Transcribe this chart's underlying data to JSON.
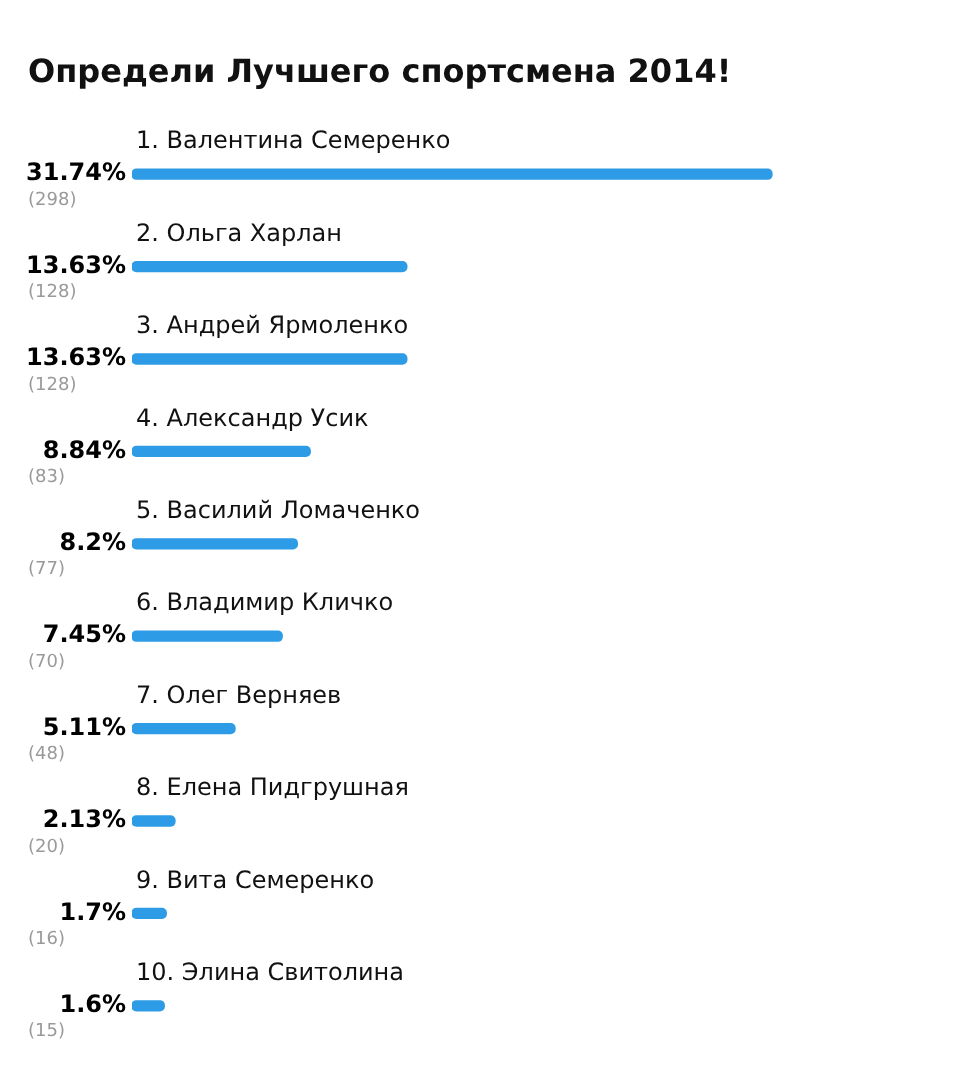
{
  "chart_data": {
    "type": "bar",
    "title": "Определи Лучшего спортсмена 2014!",
    "orientation": "horizontal",
    "tick_labels": false,
    "color": "#2e9be6",
    "categories": [
      "1. Валентина Семеренко",
      "2. Ольга Харлан",
      "3. Андрей Ярмоленко",
      "4. Александр Усик",
      "5. Василий Ломаченко",
      "6. Владимир Кличко",
      "7. Олег Верняев",
      "8. Елена Пидгрушная",
      "9. Вита Семеренко",
      "10. Элина Свитолина"
    ],
    "values": [
      31.74,
      13.63,
      13.63,
      8.84,
      8.2,
      7.45,
      5.11,
      2.13,
      1.7,
      1.6
    ],
    "value_labels": [
      "31.74%",
      "13.63%",
      "13.63%",
      "8.84%",
      "8.2%",
      "7.45%",
      "5.11%",
      "2.13%",
      "1.7%",
      "1.6%"
    ],
    "annotations": [
      "(298)",
      "(128)",
      "(128)",
      "(83)",
      "(77)",
      "(70)",
      "(48)",
      "(20)",
      "(16)",
      "(15)"
    ]
  }
}
